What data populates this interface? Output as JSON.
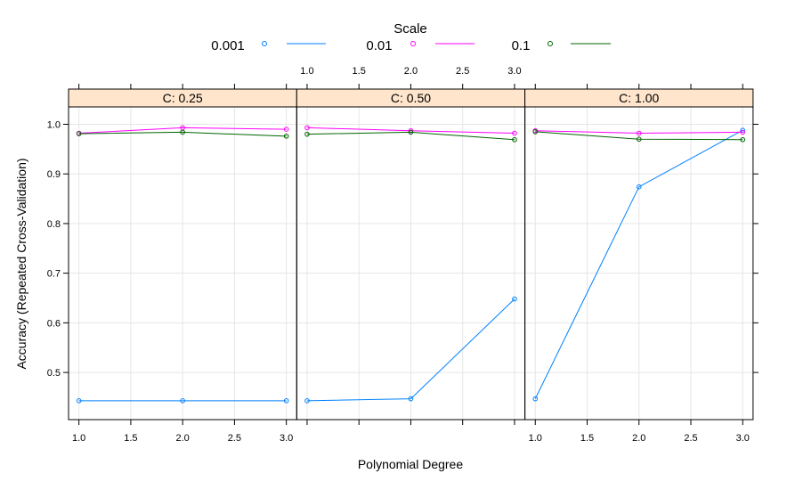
{
  "chart_data": {
    "type": "line",
    "legend": {
      "title": "Scale",
      "position": "top",
      "entries": [
        {
          "label": "0.001",
          "color": "#0080ff"
        },
        {
          "label": "0.01",
          "color": "#ff00ff"
        },
        {
          "label": "0.1",
          "color": "#006400"
        }
      ]
    },
    "xlabel": "Polynomial Degree",
    "ylabel": "Accuracy (Repeated Cross-Validation)",
    "xlim": [
      0.9,
      3.1
    ],
    "ylim": [
      0.405,
      1.035
    ],
    "x_ticks": [
      1.0,
      1.5,
      2.0,
      2.5,
      3.0
    ],
    "x_tick_labels": [
      "1.0",
      "1.5",
      "2.0",
      "2.5",
      "3.0"
    ],
    "y_ticks": [
      0.5,
      0.6,
      0.7,
      0.8,
      0.9,
      1.0
    ],
    "y_tick_labels": [
      "0.5",
      "0.6",
      "0.7",
      "0.8",
      "0.9",
      "1.0"
    ],
    "grid": true,
    "strip_color": "#ffe5cc",
    "panels": [
      {
        "strip": "C: 0.25",
        "x": [
          1,
          2,
          3
        ],
        "series": [
          {
            "name": "0.001",
            "values": [
              0.443,
              0.443,
              0.443
            ]
          },
          {
            "name": "0.01",
            "values": [
              0.982,
              0.993,
              0.99
            ]
          },
          {
            "name": "0.1",
            "values": [
              0.981,
              0.984,
              0.976
            ]
          }
        ]
      },
      {
        "strip": "C: 0.50",
        "x": [
          1,
          2,
          3
        ],
        "series": [
          {
            "name": "0.001",
            "values": [
              0.443,
              0.447,
              0.648
            ]
          },
          {
            "name": "0.01",
            "values": [
              0.993,
              0.987,
              0.982
            ]
          },
          {
            "name": "0.1",
            "values": [
              0.98,
              0.984,
              0.969
            ]
          }
        ]
      },
      {
        "strip": "C: 1.00",
        "x": [
          1,
          2,
          3
        ],
        "series": [
          {
            "name": "0.001",
            "values": [
              0.447,
              0.874,
              0.988
            ]
          },
          {
            "name": "0.01",
            "values": [
              0.987,
              0.982,
              0.984
            ]
          },
          {
            "name": "0.1",
            "values": [
              0.985,
              0.97,
              0.969
            ]
          }
        ]
      }
    ]
  }
}
